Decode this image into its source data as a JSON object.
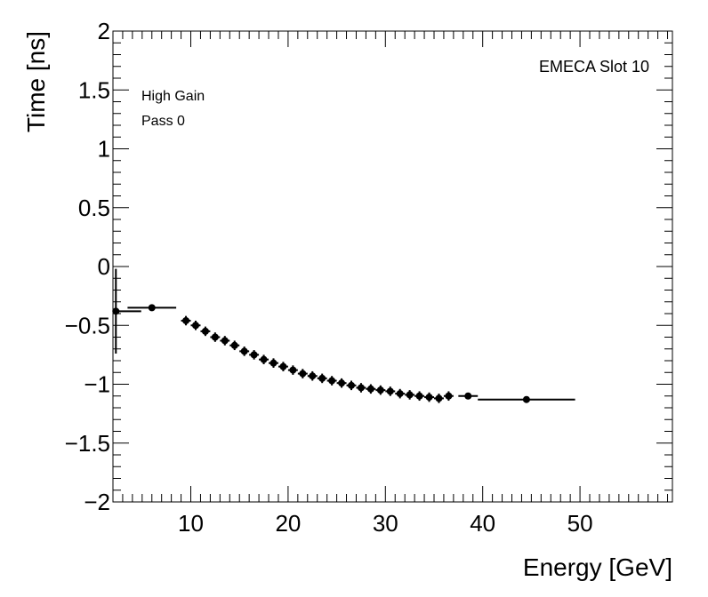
{
  "chart_data": {
    "type": "scatter",
    "title": "",
    "xlabel": "Energy [GeV]",
    "ylabel": "Time [ns]",
    "xlim": [
      2,
      59.5
    ],
    "ylim": [
      -2,
      2
    ],
    "x_major_ticks": [
      10,
      20,
      30,
      40,
      50
    ],
    "x_tick_labels": [
      "10",
      "20",
      "30",
      "40",
      "50"
    ],
    "y_major_ticks": [
      -2,
      -1.5,
      -1,
      -0.5,
      0,
      0.5,
      1,
      1.5,
      2
    ],
    "y_tick_labels": [
      "−2",
      "−1.5",
      "−1",
      "−0.5",
      "0",
      "0.5",
      "1",
      "1.5",
      "2"
    ],
    "annotations": {
      "gain": "High Gain",
      "pass": "Pass 0",
      "slot": "EMECA Slot 10"
    },
    "series": [
      {
        "name": "EMECA Slot 10",
        "color": "#000000",
        "points": [
          {
            "x": 2.3,
            "y": -0.38,
            "xerr": [
              0.3,
              2.6
            ],
            "yerr": 0.36
          },
          {
            "x": 6.0,
            "y": -0.35,
            "xerr": [
              2.5,
              2.5
            ],
            "yerr": 0.02
          },
          {
            "x": 9.5,
            "y": -0.46,
            "xerr": [
              0.5,
              0.5
            ],
            "yerr": 0.04
          },
          {
            "x": 10.5,
            "y": -0.5,
            "xerr": [
              0.5,
              0.5
            ],
            "yerr": 0.04
          },
          {
            "x": 11.5,
            "y": -0.55,
            "xerr": [
              0.5,
              0.5
            ],
            "yerr": 0.04
          },
          {
            "x": 12.5,
            "y": -0.6,
            "xerr": [
              0.5,
              0.5
            ],
            "yerr": 0.04
          },
          {
            "x": 13.5,
            "y": -0.63,
            "xerr": [
              0.5,
              0.5
            ],
            "yerr": 0.04
          },
          {
            "x": 14.5,
            "y": -0.67,
            "xerr": [
              0.5,
              0.5
            ],
            "yerr": 0.04
          },
          {
            "x": 15.5,
            "y": -0.72,
            "xerr": [
              0.5,
              0.5
            ],
            "yerr": 0.04
          },
          {
            "x": 16.5,
            "y": -0.75,
            "xerr": [
              0.5,
              0.5
            ],
            "yerr": 0.04
          },
          {
            "x": 17.5,
            "y": -0.79,
            "xerr": [
              0.5,
              0.5
            ],
            "yerr": 0.04
          },
          {
            "x": 18.5,
            "y": -0.82,
            "xerr": [
              0.5,
              0.5
            ],
            "yerr": 0.04
          },
          {
            "x": 19.5,
            "y": -0.85,
            "xerr": [
              0.5,
              0.5
            ],
            "yerr": 0.04
          },
          {
            "x": 20.5,
            "y": -0.88,
            "xerr": [
              0.5,
              0.5
            ],
            "yerr": 0.04
          },
          {
            "x": 21.5,
            "y": -0.91,
            "xerr": [
              0.5,
              0.5
            ],
            "yerr": 0.04
          },
          {
            "x": 22.5,
            "y": -0.93,
            "xerr": [
              0.5,
              0.5
            ],
            "yerr": 0.04
          },
          {
            "x": 23.5,
            "y": -0.95,
            "xerr": [
              0.5,
              0.5
            ],
            "yerr": 0.04
          },
          {
            "x": 24.5,
            "y": -0.97,
            "xerr": [
              0.5,
              0.5
            ],
            "yerr": 0.04
          },
          {
            "x": 25.5,
            "y": -0.99,
            "xerr": [
              0.5,
              0.5
            ],
            "yerr": 0.04
          },
          {
            "x": 26.5,
            "y": -1.01,
            "xerr": [
              0.5,
              0.5
            ],
            "yerr": 0.04
          },
          {
            "x": 27.5,
            "y": -1.03,
            "xerr": [
              0.5,
              0.5
            ],
            "yerr": 0.04
          },
          {
            "x": 28.5,
            "y": -1.04,
            "xerr": [
              0.5,
              0.5
            ],
            "yerr": 0.04
          },
          {
            "x": 29.5,
            "y": -1.05,
            "xerr": [
              0.5,
              0.5
            ],
            "yerr": 0.04
          },
          {
            "x": 30.5,
            "y": -1.06,
            "xerr": [
              0.5,
              0.5
            ],
            "yerr": 0.04
          },
          {
            "x": 31.5,
            "y": -1.08,
            "xerr": [
              0.5,
              0.5
            ],
            "yerr": 0.04
          },
          {
            "x": 32.5,
            "y": -1.09,
            "xerr": [
              0.5,
              0.5
            ],
            "yerr": 0.04
          },
          {
            "x": 33.5,
            "y": -1.1,
            "xerr": [
              0.5,
              0.5
            ],
            "yerr": 0.04
          },
          {
            "x": 34.5,
            "y": -1.11,
            "xerr": [
              0.5,
              0.5
            ],
            "yerr": 0.04
          },
          {
            "x": 35.5,
            "y": -1.12,
            "xerr": [
              0.5,
              0.5
            ],
            "yerr": 0.04
          },
          {
            "x": 36.5,
            "y": -1.1,
            "xerr": [
              0.5,
              0.5
            ],
            "yerr": 0.04
          },
          {
            "x": 38.5,
            "y": -1.1,
            "xerr": [
              1.0,
              1.0
            ],
            "yerr": 0.02
          },
          {
            "x": 44.5,
            "y": -1.13,
            "xerr": [
              5.0,
              5.0
            ],
            "yerr": 0.01
          }
        ]
      }
    ]
  }
}
